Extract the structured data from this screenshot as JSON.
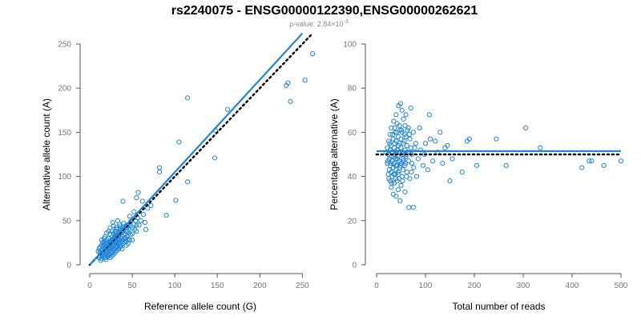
{
  "title": "rs2240075 - ENSG00000122390,ENSG00000262621",
  "subtitle": {
    "prefix": "p-value: 2.84×10",
    "exponent": "-3"
  },
  "colors": {
    "points": "#1f86d9",
    "fit_line": "#1f86d9",
    "reference_line": "#000000",
    "axes": "#555555",
    "tick_labels": "#777777"
  },
  "chart_data": [
    {
      "type": "scatter",
      "xlabel": "Reference allele count (G)",
      "ylabel": "Alternative allele count (A)",
      "xlim": [
        0,
        260
      ],
      "ylim": [
        0,
        250
      ],
      "xticks": [
        0,
        50,
        100,
        150,
        200,
        250
      ],
      "yticks": [
        0,
        50,
        100,
        150,
        200,
        250
      ],
      "fit_line": {
        "style": "solid",
        "from": [
          0,
          0
        ],
        "to": [
          250,
          262
        ]
      },
      "reference_line": {
        "style": "dotted",
        "from": [
          0,
          0
        ],
        "to": [
          262,
          262
        ]
      },
      "points": [
        [
          115,
          189
        ],
        [
          162,
          176
        ],
        [
          148,
          152
        ],
        [
          262,
          239
        ],
        [
          253,
          209
        ],
        [
          233,
          206
        ],
        [
          231,
          203
        ],
        [
          236,
          185
        ],
        [
          105,
          139
        ],
        [
          147,
          121
        ],
        [
          82,
          110
        ],
        [
          82,
          105
        ],
        [
          115,
          94
        ],
        [
          90,
          56
        ],
        [
          101,
          73
        ],
        [
          57,
          82
        ],
        [
          62,
          72
        ],
        [
          72,
          67
        ],
        [
          68,
          64
        ],
        [
          55,
          76
        ],
        [
          52,
          60
        ],
        [
          63,
          57
        ],
        [
          47,
          55
        ],
        [
          55,
          45
        ],
        [
          48,
          49
        ],
        [
          44,
          38
        ],
        [
          40,
          47
        ],
        [
          45,
          44
        ],
        [
          38,
          39
        ],
        [
          36,
          41
        ],
        [
          42,
          35
        ],
        [
          35,
          46
        ],
        [
          30,
          38
        ],
        [
          34,
          33
        ],
        [
          28,
          44
        ],
        [
          33,
          30
        ],
        [
          31,
          36
        ],
        [
          26,
          31
        ],
        [
          29,
          27
        ],
        [
          24,
          35
        ],
        [
          27,
          24
        ],
        [
          22,
          30
        ],
        [
          25,
          22
        ],
        [
          20,
          28
        ],
        [
          23,
          26
        ],
        [
          21,
          20
        ],
        [
          19,
          24
        ],
        [
          18,
          19
        ],
        [
          17,
          26
        ],
        [
          16,
          21
        ],
        [
          15,
          17
        ],
        [
          14,
          22
        ],
        [
          13,
          16
        ],
        [
          12,
          14
        ],
        [
          16,
          12
        ],
        [
          18,
          10
        ],
        [
          20,
          14
        ],
        [
          22,
          16
        ],
        [
          24,
          18
        ],
        [
          26,
          20
        ],
        [
          28,
          22
        ],
        [
          30,
          25
        ],
        [
          32,
          27
        ],
        [
          34,
          28
        ],
        [
          36,
          30
        ],
        [
          38,
          32
        ],
        [
          40,
          34
        ],
        [
          42,
          30
        ],
        [
          44,
          32
        ],
        [
          46,
          36
        ],
        [
          48,
          34
        ],
        [
          35,
          22
        ],
        [
          30,
          20
        ],
        [
          28,
          18
        ],
        [
          25,
          15
        ],
        [
          22,
          12
        ],
        [
          20,
          10
        ],
        [
          18,
          8
        ],
        [
          16,
          9
        ],
        [
          15,
          11
        ],
        [
          14,
          7
        ],
        [
          13,
          12
        ],
        [
          12,
          10
        ],
        [
          11,
          8
        ],
        [
          13,
          5
        ],
        [
          19,
          6
        ],
        [
          21,
          9
        ],
        [
          23,
          11
        ],
        [
          25,
          13
        ],
        [
          27,
          15
        ],
        [
          29,
          17
        ],
        [
          31,
          19
        ],
        [
          33,
          21
        ],
        [
          35,
          24
        ],
        [
          37,
          26
        ],
        [
          39,
          28
        ],
        [
          41,
          29
        ],
        [
          43,
          27
        ],
        [
          45,
          29
        ],
        [
          50,
          35
        ],
        [
          53,
          40
        ],
        [
          58,
          45
        ],
        [
          60,
          50
        ],
        [
          65,
          48
        ],
        [
          24,
          42
        ],
        [
          27,
          48
        ],
        [
          33,
          50
        ],
        [
          37,
          36
        ],
        [
          31,
          42
        ],
        [
          18,
          32
        ],
        [
          20,
          36
        ],
        [
          22,
          38
        ],
        [
          17,
          30
        ],
        [
          15,
          25
        ],
        [
          14,
          28
        ],
        [
          12,
          20
        ],
        [
          11,
          18
        ],
        [
          10,
          15
        ],
        [
          16,
          14
        ],
        [
          19,
          16
        ],
        [
          21,
          18
        ],
        [
          23,
          20
        ],
        [
          25,
          25
        ],
        [
          27,
          27
        ],
        [
          29,
          29
        ],
        [
          31,
          31
        ],
        [
          33,
          33
        ],
        [
          35,
          35
        ],
        [
          26,
          38
        ],
        [
          28,
          35
        ],
        [
          30,
          33
        ],
        [
          32,
          40
        ],
        [
          34,
          37
        ],
        [
          36,
          44
        ],
        [
          38,
          42
        ],
        [
          40,
          40
        ],
        [
          42,
          44
        ],
        [
          44,
          42
        ],
        [
          46,
          40
        ],
        [
          48,
          44
        ],
        [
          50,
          42
        ],
        [
          52,
          46
        ],
        [
          54,
          50
        ],
        [
          56,
          53
        ],
        [
          17,
          23
        ],
        [
          19,
          21
        ],
        [
          21,
          25
        ],
        [
          23,
          23
        ],
        [
          25,
          27
        ],
        [
          27,
          29
        ],
        [
          29,
          23
        ],
        [
          31,
          26
        ],
        [
          33,
          24
        ],
        [
          35,
          28
        ],
        [
          37,
          22
        ],
        [
          39,
          24
        ],
        [
          41,
          26
        ],
        [
          43,
          22
        ],
        [
          45,
          24
        ],
        [
          47,
          28
        ],
        [
          24,
          8
        ],
        [
          26,
          10
        ],
        [
          28,
          12
        ],
        [
          30,
          14
        ],
        [
          32,
          16
        ],
        [
          34,
          18
        ],
        [
          36,
          20
        ],
        [
          38,
          18
        ],
        [
          22,
          22
        ],
        [
          24,
          26
        ],
        [
          26,
          28
        ],
        [
          28,
          30
        ],
        [
          30,
          32
        ],
        [
          32,
          34
        ],
        [
          34,
          36
        ],
        [
          19,
          12
        ],
        [
          39,
          72
        ],
        [
          44,
          45
        ],
        [
          50,
          28
        ],
        [
          55,
          38
        ],
        [
          66,
          40
        ]
      ]
    },
    {
      "type": "scatter",
      "xlabel": "Total number of reads",
      "ylabel": "Percentage alternative (A)",
      "xlim": [
        0,
        500
      ],
      "ylim": [
        0,
        100
      ],
      "xticks": [
        0,
        100,
        200,
        300,
        400,
        500
      ],
      "yticks": [
        0,
        20,
        40,
        60,
        80,
        100
      ],
      "fit_line": {
        "style": "solid",
        "y": 51.5
      },
      "reference_line": {
        "style": "dotted",
        "y": 50
      },
      "points": [
        [
          45,
          72
        ],
        [
          49,
          73
        ],
        [
          52,
          70
        ],
        [
          60,
          68
        ],
        [
          70,
          71
        ],
        [
          40,
          68
        ],
        [
          55,
          66
        ],
        [
          35,
          65
        ],
        [
          42,
          64
        ],
        [
          58,
          63
        ],
        [
          65,
          62
        ],
        [
          30,
          62
        ],
        [
          48,
          61
        ],
        [
          38,
          60
        ],
        [
          52,
          60
        ],
        [
          75,
          60
        ],
        [
          28,
          59
        ],
        [
          44,
          58
        ],
        [
          60,
          58
        ],
        [
          34,
          57
        ],
        [
          50,
          57
        ],
        [
          68,
          57
        ],
        [
          25,
          56
        ],
        [
          40,
          56
        ],
        [
          55,
          55
        ],
        [
          80,
          55
        ],
        [
          30,
          54
        ],
        [
          45,
          54
        ],
        [
          62,
          54
        ],
        [
          22,
          53
        ],
        [
          36,
          53
        ],
        [
          50,
          53
        ],
        [
          70,
          53
        ],
        [
          28,
          52
        ],
        [
          42,
          52
        ],
        [
          58,
          52
        ],
        [
          90,
          52
        ],
        [
          20,
          51
        ],
        [
          33,
          51
        ],
        [
          47,
          51
        ],
        [
          64,
          51
        ],
        [
          24,
          50
        ],
        [
          38,
          50
        ],
        [
          52,
          50
        ],
        [
          72,
          50
        ],
        [
          30,
          49
        ],
        [
          44,
          49
        ],
        [
          60,
          49
        ],
        [
          26,
          48
        ],
        [
          40,
          48
        ],
        [
          55,
          48
        ],
        [
          85,
          48
        ],
        [
          32,
          47
        ],
        [
          46,
          47
        ],
        [
          66,
          47
        ],
        [
          22,
          46
        ],
        [
          36,
          46
        ],
        [
          50,
          46
        ],
        [
          28,
          45
        ],
        [
          42,
          45
        ],
        [
          58,
          45
        ],
        [
          34,
          44
        ],
        [
          48,
          44
        ],
        [
          76,
          44
        ],
        [
          26,
          43
        ],
        [
          40,
          43
        ],
        [
          54,
          43
        ],
        [
          30,
          42
        ],
        [
          44,
          42
        ],
        [
          62,
          42
        ],
        [
          24,
          41
        ],
        [
          38,
          41
        ],
        [
          52,
          40
        ],
        [
          32,
          40
        ],
        [
          46,
          39
        ],
        [
          68,
          39
        ],
        [
          28,
          38
        ],
        [
          42,
          38
        ],
        [
          36,
          37
        ],
        [
          50,
          36
        ],
        [
          30,
          35
        ],
        [
          44,
          34
        ],
        [
          58,
          33
        ],
        [
          34,
          32
        ],
        [
          40,
          31
        ],
        [
          48,
          29
        ],
        [
          66,
          26
        ],
        [
          75,
          26
        ],
        [
          110,
          57
        ],
        [
          115,
          47
        ],
        [
          108,
          68
        ],
        [
          130,
          60
        ],
        [
          125,
          51
        ],
        [
          150,
          38
        ],
        [
          155,
          48
        ],
        [
          140,
          53
        ],
        [
          175,
          42
        ],
        [
          185,
          56
        ],
        [
          190,
          57
        ],
        [
          205,
          45
        ],
        [
          245,
          57
        ],
        [
          265,
          45
        ],
        [
          305,
          62
        ],
        [
          335,
          53
        ],
        [
          420,
          44
        ],
        [
          435,
          47
        ],
        [
          440,
          47
        ],
        [
          465,
          45
        ],
        [
          500,
          47
        ],
        [
          100,
          55
        ],
        [
          95,
          45
        ],
        [
          88,
          62
        ],
        [
          82,
          40
        ],
        [
          78,
          53
        ],
        [
          72,
          46
        ],
        [
          105,
          43
        ],
        [
          120,
          56
        ],
        [
          135,
          46
        ],
        [
          145,
          54
        ],
        [
          98,
          50
        ],
        [
          27,
          55
        ],
        [
          31,
          51
        ],
        [
          37,
          55
        ],
        [
          41,
          51
        ],
        [
          47,
          55
        ],
        [
          53,
          51
        ],
        [
          57,
          56
        ],
        [
          61,
          50
        ],
        [
          23,
          47
        ],
        [
          29,
          46
        ],
        [
          35,
          49
        ],
        [
          39,
          45
        ],
        [
          43,
          48
        ],
        [
          49,
          45
        ],
        [
          55,
          47
        ],
        [
          59,
          46
        ],
        [
          33,
          59
        ],
        [
          37,
          62
        ],
        [
          41,
          60
        ],
        [
          47,
          63
        ],
        [
          51,
          61
        ],
        [
          57,
          59
        ],
        [
          63,
          61
        ],
        [
          67,
          59
        ],
        [
          25,
          39
        ],
        [
          31,
          37
        ],
        [
          35,
          41
        ],
        [
          39,
          39
        ],
        [
          45,
          41
        ],
        [
          53,
          38
        ],
        [
          61,
          40
        ],
        [
          71,
          42
        ]
      ]
    }
  ]
}
